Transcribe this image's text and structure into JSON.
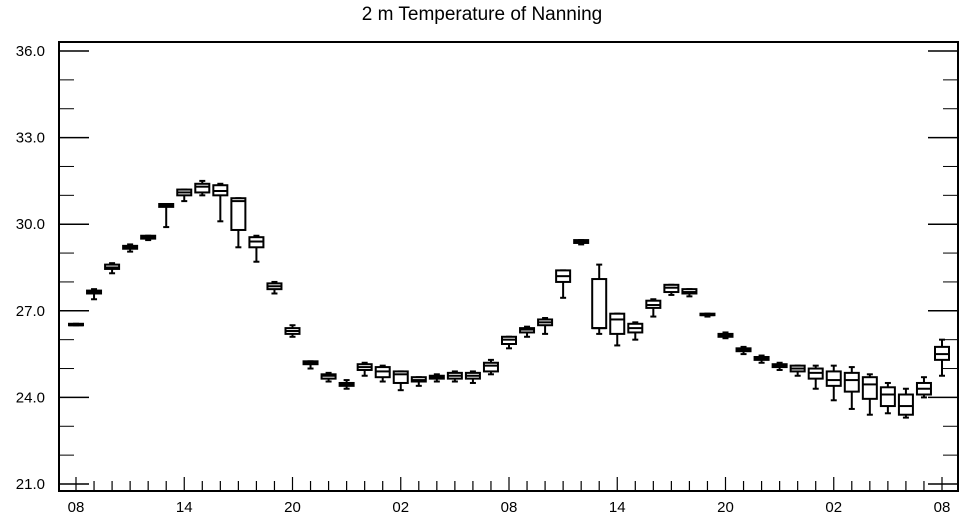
{
  "chart_data": {
    "type": "box",
    "title": "2 m Temperature of Nanning",
    "xlabel": "",
    "ylabel": "",
    "ylim": [
      21.0,
      36.0
    ],
    "yticks": [
      "21.0",
      "24.0",
      "27.0",
      "30.0",
      "33.0",
      "36.0"
    ],
    "xtick_labels": [
      {
        "hour": 0,
        "label": "08"
      },
      {
        "hour": 6,
        "label": "14"
      },
      {
        "hour": 12,
        "label": "20"
      },
      {
        "hour": 18,
        "label": "02"
      },
      {
        "hour": 24,
        "label": "08"
      },
      {
        "hour": 30,
        "label": "14"
      },
      {
        "hour": 36,
        "label": "20"
      },
      {
        "hour": 42,
        "label": "02"
      },
      {
        "hour": 48,
        "label": "08"
      }
    ],
    "grid": false,
    "boxes": [
      {
        "hour": 0,
        "min": 26.5,
        "q1": 26.5,
        "median": 26.5,
        "q3": 26.55,
        "max": 26.55
      },
      {
        "hour": 1,
        "min": 27.4,
        "q1": 27.6,
        "median": 27.65,
        "q3": 27.7,
        "max": 27.75
      },
      {
        "hour": 2,
        "min": 28.3,
        "q1": 28.45,
        "median": 28.5,
        "q3": 28.6,
        "max": 28.65
      },
      {
        "hour": 3,
        "min": 29.05,
        "q1": 29.15,
        "median": 29.2,
        "q3": 29.25,
        "max": 29.3
      },
      {
        "hour": 4,
        "min": 29.45,
        "q1": 29.5,
        "median": 29.55,
        "q3": 29.6,
        "max": 29.6
      },
      {
        "hour": 5,
        "min": 29.9,
        "q1": 30.6,
        "median": 30.65,
        "q3": 30.7,
        "max": 30.7
      },
      {
        "hour": 6,
        "min": 30.8,
        "q1": 31.0,
        "median": 31.1,
        "q3": 31.2,
        "max": 31.2
      },
      {
        "hour": 7,
        "min": 31.0,
        "q1": 31.1,
        "median": 31.3,
        "q3": 31.4,
        "max": 31.5
      },
      {
        "hour": 8,
        "min": 30.1,
        "q1": 31.0,
        "median": 31.15,
        "q3": 31.35,
        "max": 31.4
      },
      {
        "hour": 9,
        "min": 29.2,
        "q1": 29.8,
        "median": 30.8,
        "q3": 30.9,
        "max": 30.9
      },
      {
        "hour": 10,
        "min": 28.7,
        "q1": 29.2,
        "median": 29.4,
        "q3": 29.55,
        "max": 29.6
      },
      {
        "hour": 11,
        "min": 27.6,
        "q1": 27.75,
        "median": 27.85,
        "q3": 27.95,
        "max": 28.0
      },
      {
        "hour": 12,
        "min": 26.1,
        "q1": 26.2,
        "median": 26.3,
        "q3": 26.4,
        "max": 26.5
      },
      {
        "hour": 13,
        "min": 25.0,
        "q1": 25.15,
        "median": 25.2,
        "q3": 25.25,
        "max": 25.25
      },
      {
        "hour": 14,
        "min": 24.55,
        "q1": 24.65,
        "median": 24.75,
        "q3": 24.8,
        "max": 24.85
      },
      {
        "hour": 15,
        "min": 24.3,
        "q1": 24.4,
        "median": 24.45,
        "q3": 24.5,
        "max": 24.6
      },
      {
        "hour": 16,
        "min": 24.75,
        "q1": 24.95,
        "median": 25.05,
        "q3": 25.15,
        "max": 25.2
      },
      {
        "hour": 17,
        "min": 24.55,
        "q1": 24.7,
        "median": 24.9,
        "q3": 25.05,
        "max": 25.1
      },
      {
        "hour": 18,
        "min": 24.25,
        "q1": 24.5,
        "median": 24.8,
        "q3": 24.9,
        "max": 24.9
      },
      {
        "hour": 19,
        "min": 24.4,
        "q1": 24.55,
        "median": 24.6,
        "q3": 24.7,
        "max": 24.7
      },
      {
        "hour": 20,
        "min": 24.55,
        "q1": 24.65,
        "median": 24.7,
        "q3": 24.75,
        "max": 24.8
      },
      {
        "hour": 21,
        "min": 24.55,
        "q1": 24.65,
        "median": 24.75,
        "q3": 24.85,
        "max": 24.9
      },
      {
        "hour": 22,
        "min": 24.5,
        "q1": 24.65,
        "median": 24.75,
        "q3": 24.85,
        "max": 24.9
      },
      {
        "hour": 23,
        "min": 24.8,
        "q1": 24.9,
        "median": 25.1,
        "q3": 25.2,
        "max": 25.3
      },
      {
        "hour": 24,
        "min": 25.7,
        "q1": 25.85,
        "median": 26.0,
        "q3": 26.1,
        "max": 26.1
      },
      {
        "hour": 25,
        "min": 26.1,
        "q1": 26.25,
        "median": 26.35,
        "q3": 26.4,
        "max": 26.45
      },
      {
        "hour": 26,
        "min": 26.2,
        "q1": 26.5,
        "median": 26.6,
        "q3": 26.7,
        "max": 26.75
      },
      {
        "hour": 27,
        "min": 27.45,
        "q1": 28.0,
        "median": 28.2,
        "q3": 28.4,
        "max": 28.4
      },
      {
        "hour": 28,
        "min": 29.3,
        "q1": 29.35,
        "median": 29.4,
        "q3": 29.45,
        "max": 29.45
      },
      {
        "hour": 29,
        "min": 26.2,
        "q1": 26.4,
        "median": 26.4,
        "q3": 28.1,
        "max": 28.6
      },
      {
        "hour": 30,
        "min": 25.8,
        "q1": 26.2,
        "median": 26.7,
        "q3": 26.9,
        "max": 26.9
      },
      {
        "hour": 31,
        "min": 26.0,
        "q1": 26.25,
        "median": 26.4,
        "q3": 26.55,
        "max": 26.6
      },
      {
        "hour": 32,
        "min": 26.8,
        "q1": 27.1,
        "median": 27.2,
        "q3": 27.35,
        "max": 27.4
      },
      {
        "hour": 33,
        "min": 27.55,
        "q1": 27.65,
        "median": 27.8,
        "q3": 27.9,
        "max": 27.9
      },
      {
        "hour": 34,
        "min": 27.5,
        "q1": 27.6,
        "median": 27.65,
        "q3": 27.75,
        "max": 27.75
      },
      {
        "hour": 35,
        "min": 26.8,
        "q1": 26.85,
        "median": 26.85,
        "q3": 26.9,
        "max": 26.9
      },
      {
        "hour": 36,
        "min": 26.05,
        "q1": 26.1,
        "median": 26.15,
        "q3": 26.2,
        "max": 26.25
      },
      {
        "hour": 37,
        "min": 25.5,
        "q1": 25.6,
        "median": 25.65,
        "q3": 25.7,
        "max": 25.75
      },
      {
        "hour": 38,
        "min": 25.2,
        "q1": 25.3,
        "median": 25.35,
        "q3": 25.4,
        "max": 25.45
      },
      {
        "hour": 39,
        "min": 24.95,
        "q1": 25.05,
        "median": 25.1,
        "q3": 25.15,
        "max": 25.2
      },
      {
        "hour": 40,
        "min": 24.75,
        "q1": 24.9,
        "median": 25.0,
        "q3": 25.1,
        "max": 25.1
      },
      {
        "hour": 41,
        "min": 24.3,
        "q1": 24.65,
        "median": 24.85,
        "q3": 25.0,
        "max": 25.1
      },
      {
        "hour": 42,
        "min": 23.9,
        "q1": 24.4,
        "median": 24.6,
        "q3": 24.9,
        "max": 25.1
      },
      {
        "hour": 43,
        "min": 23.6,
        "q1": 24.2,
        "median": 24.6,
        "q3": 24.85,
        "max": 25.05
      },
      {
        "hour": 44,
        "min": 23.4,
        "q1": 23.95,
        "median": 24.45,
        "q3": 24.7,
        "max": 24.8
      },
      {
        "hour": 45,
        "min": 23.45,
        "q1": 23.7,
        "median": 24.1,
        "q3": 24.35,
        "max": 24.5
      },
      {
        "hour": 46,
        "min": 23.3,
        "q1": 23.4,
        "median": 23.7,
        "q3": 24.1,
        "max": 24.3
      },
      {
        "hour": 47,
        "min": 24.0,
        "q1": 24.1,
        "median": 24.3,
        "q3": 24.5,
        "max": 24.7
      },
      {
        "hour": 48,
        "min": 24.75,
        "q1": 25.3,
        "median": 25.5,
        "q3": 25.75,
        "max": 26.0
      }
    ]
  }
}
